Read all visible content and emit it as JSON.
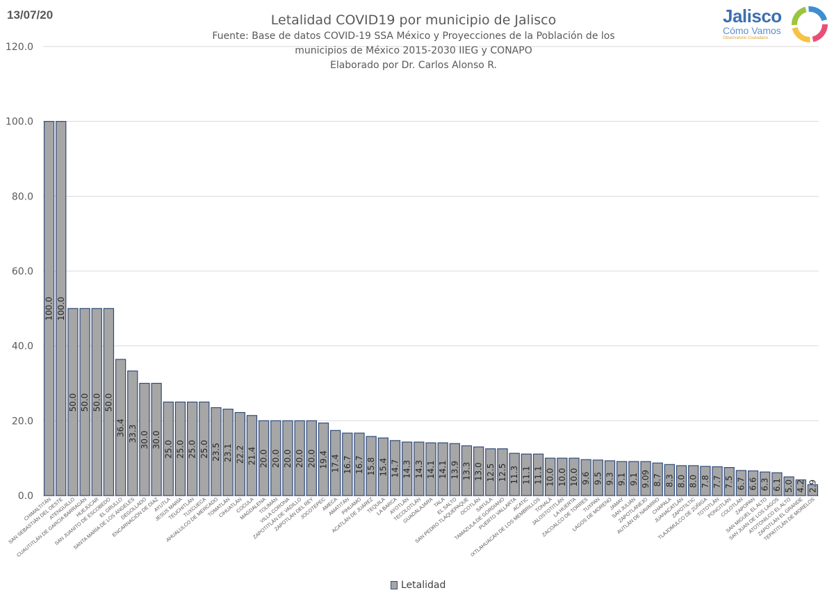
{
  "header": {
    "date": "13/07/20",
    "logo_main": "Jalisco",
    "logo_sub": "Cómo Vamos",
    "logo_small": "Observatorio Ciudadano"
  },
  "colors": {
    "bar_fill": "#a6a6a6",
    "bar_stroke": "#2f4a7a",
    "grid": "#d9d9d9",
    "text": "#595959"
  },
  "chart_data": {
    "type": "bar",
    "title": "Letalidad COVID19 por municipio de Jalisco",
    "subtitle_lines": [
      "Fuente: Base de datos COVID-19 SSA México y Proyecciones de la Población de los",
      "municipios de México 2015-2030 IIEG y CONAPO",
      "Elaborado por Dr. Carlos Alonso R."
    ],
    "ylim": [
      0,
      120
    ],
    "yticks": [
      "0.0",
      "20.0",
      "40.0",
      "60.0",
      "80.0",
      "100.0",
      "120.0"
    ],
    "legend": "Letalidad",
    "grid": true,
    "categories": [
      "CHIMALTITÁN",
      "SAN SEBASTIÁN DEL OESTE",
      "ATENGUILLO",
      "CUAUTITLÁN DE GARCÍA BARRAGÁN",
      "HUEJÚCAR",
      "SAN JUANITO DE ESCOBEDO",
      "EL GRULLO",
      "SANTA MARÍA DE LOS ÁNGELES",
      "DEGOLLADO",
      "ENCARNACIÓN DE DÍAZ",
      "AYUTLA",
      "JESÚS MARÍA",
      "TEUCHITLÁN",
      "TUXCUECA",
      "AHUALULCO DE MERCADO",
      "TOMATLÁN",
      "CIHUATLÁN",
      "COCULA",
      "MAGDALENA",
      "TOLIMÁN",
      "VILLA CORONA",
      "ZAPOTITLÁN DE VADILLO",
      "ZAPOTLÁN DEL REY",
      "JOCOTEPEC",
      "AMECA",
      "AMATITÁN",
      "PIHUAMO",
      "ACATLÁN DE JUÁREZ",
      "TEQUILA",
      "LA BARCA",
      "AYOTLÁN",
      "TECOLOTLÁN",
      "GUADALAJARA",
      "TALA",
      "EL SALTO",
      "SAN PEDRO TLAQUEPAQUE",
      "OCOTLÁN",
      "SAYULA",
      "TAMAZULA DE GORDIANO",
      "PUERTO VALLARTA",
      "ACATIC",
      "IXTLAHUACÁN DE LOS MEMBRILLOS",
      "TONALÁ",
      "JALOSTOTITLÁN",
      "LA HUERTA",
      "ZACOALCO DE TORRES",
      "TUXPAN",
      "LAGOS DE MORENO",
      "JAMAY",
      "SAN JULIÁN",
      "ZAPOTLANEJO",
      "AUTLÁN DE NAVARRO",
      "CHAPALA",
      "JUANACATLÁN",
      "ZAPOTILTIC",
      "TLAJOMULCO DE ZÚÑIGA",
      "TOTOTLÁN",
      "PONCITLÁN",
      "COLOTLÁN",
      "ZAPOPAN",
      "SAN MIGUEL EL ALTO",
      "SAN JUAN DE LOS LAGOS",
      "ATOTONILCO EL ALTO",
      "ZAPOTLÁN EL GRANDE",
      "TEPATITLÁN DE MORELOS"
    ],
    "values": [
      100.0,
      100.0,
      50.0,
      50.0,
      50.0,
      50.0,
      36.4,
      33.3,
      30.0,
      30.0,
      25.0,
      25.0,
      25.0,
      25.0,
      23.5,
      23.1,
      22.2,
      21.4,
      20.0,
      20.0,
      20.0,
      20.0,
      20.0,
      19.4,
      17.4,
      16.7,
      16.7,
      15.8,
      15.4,
      14.7,
      14.3,
      14.3,
      14.1,
      14.1,
      13.9,
      13.3,
      13.0,
      12.5,
      12.5,
      11.3,
      11.1,
      11.1,
      10.0,
      10.0,
      10.0,
      9.6,
      9.5,
      9.3,
      9.1,
      9.1,
      9.09,
      8.7,
      8.3,
      8.0,
      8.0,
      7.8,
      7.7,
      7.5,
      6.7,
      6.6,
      6.3,
      6.1,
      5.0,
      4.2,
      2.9
    ],
    "value_labels": [
      "100.0",
      "100.0",
      "50.0",
      "50.0",
      "50.0",
      "50.0",
      "36.4",
      "33.3",
      "30.0",
      "30.0",
      "25.0",
      "25.0",
      "25.0",
      "25.0",
      "23.5",
      "23.1",
      "22.2",
      "21.4",
      "20.0",
      "20.0",
      "20.0",
      "20.0",
      "20.0",
      "19.4",
      "17.4",
      "16.7",
      "16.7",
      "15.8",
      "15.4",
      "14.7",
      "14.3",
      "14.3",
      "14.1",
      "14.1",
      "13.9",
      "13.3",
      "13.0",
      "12.5",
      "12.5",
      "11.3",
      "11.1",
      "11.1",
      "10.0",
      "10.0",
      "10.0",
      "9.6",
      "9.5",
      "9.3",
      "9.1",
      "9.1",
      "9.09",
      "8.7",
      "8.3",
      "8.0",
      "8.0",
      "7.8",
      "7.7",
      "7.5",
      "6.7",
      "6.6",
      "6.3",
      "6.1",
      "5.0",
      "4.2",
      "2.9"
    ]
  }
}
